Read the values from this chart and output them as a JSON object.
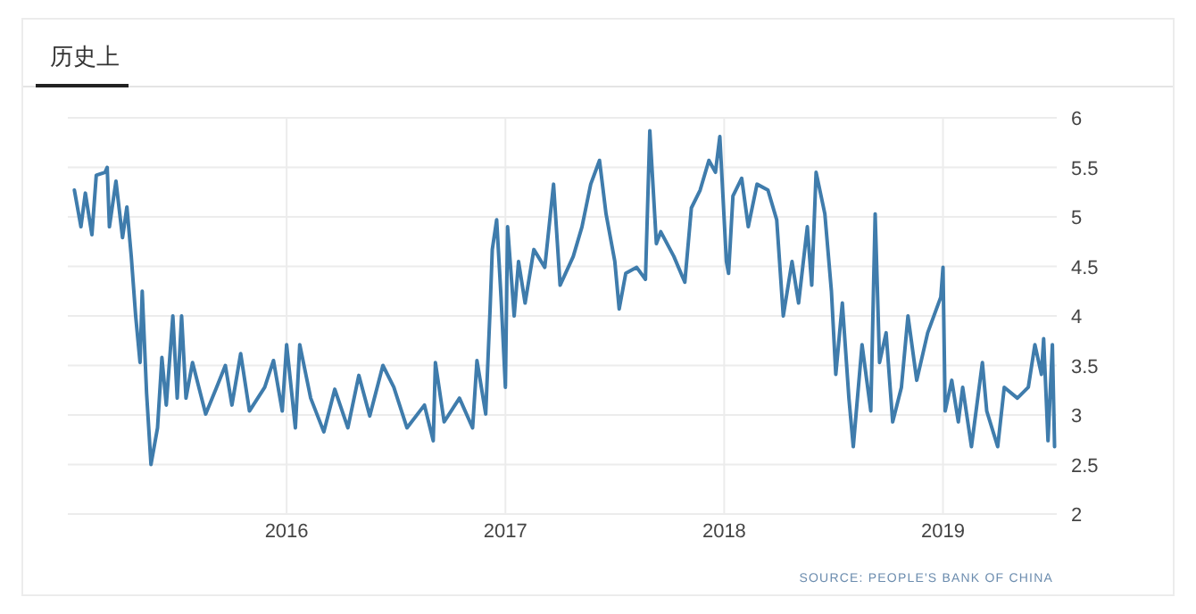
{
  "chart_data": {
    "type": "line",
    "title": "历史上",
    "annotations": [
      "SOURCE: PEOPLE'S BANK OF CHINA"
    ],
    "xlim": [
      2015.0,
      2019.52
    ],
    "xticks": [
      2016,
      2017,
      2018,
      2019
    ],
    "ylim": [
      2,
      6
    ],
    "yticks": [
      2,
      2.5,
      3,
      3.5,
      4,
      4.5,
      5,
      5.5,
      6
    ],
    "grid": true,
    "series": [
      {
        "color": "#3f7cac",
        "x": [
          2015.03,
          2015.06,
          2015.08,
          2015.11,
          2015.13,
          2015.17,
          2015.18,
          2015.19,
          2015.22,
          2015.25,
          2015.27,
          2015.29,
          2015.31,
          2015.33,
          2015.34,
          2015.36,
          2015.38,
          2015.41,
          2015.43,
          2015.45,
          2015.48,
          2015.5,
          2015.52,
          2015.54,
          2015.57,
          2015.63,
          2015.68,
          2015.72,
          2015.75,
          2015.79,
          2015.83,
          2015.9,
          2015.94,
          2015.98,
          2016.0,
          2016.04,
          2016.06,
          2016.11,
          2016.17,
          2016.22,
          2016.28,
          2016.33,
          2016.38,
          2016.44,
          2016.49,
          2016.55,
          2016.63,
          2016.67,
          2016.68,
          2016.72,
          2016.79,
          2016.85,
          2016.87,
          2016.91,
          2016.93,
          2016.94,
          2016.96,
          2016.98,
          2017.0,
          2017.01,
          2017.04,
          2017.06,
          2017.09,
          2017.13,
          2017.18,
          2017.22,
          2017.25,
          2017.31,
          2017.35,
          2017.39,
          2017.43,
          2017.46,
          2017.5,
          2017.52,
          2017.55,
          2017.6,
          2017.64,
          2017.66,
          2017.69,
          2017.71,
          2017.77,
          2017.82,
          2017.85,
          2017.89,
          2017.93,
          2017.96,
          2017.98,
          2018.01,
          2018.02,
          2018.04,
          2018.08,
          2018.11,
          2018.15,
          2018.2,
          2018.24,
          2018.27,
          2018.31,
          2018.34,
          2018.38,
          2018.4,
          2018.42,
          2018.46,
          2018.49,
          2018.51,
          2018.54,
          2018.57,
          2018.59,
          2018.63,
          2018.67,
          2018.69,
          2018.71,
          2018.74,
          2018.77,
          2018.81,
          2018.84,
          2018.88,
          2018.93,
          2018.99,
          2019.0,
          2019.01,
          2019.04,
          2019.07,
          2019.09,
          2019.13,
          2019.18,
          2019.2,
          2019.25,
          2019.28,
          2019.34,
          2019.39,
          2019.42,
          2019.45,
          2019.46,
          2019.48,
          2019.5,
          2019.51
        ],
        "values": [
          5.27,
          4.9,
          5.24,
          4.82,
          5.42,
          5.45,
          5.5,
          4.9,
          5.36,
          4.79,
          5.1,
          4.6,
          4.0,
          3.53,
          4.25,
          3.22,
          2.5,
          2.87,
          3.58,
          3.1,
          4.0,
          3.17,
          4.0,
          3.17,
          3.53,
          3.01,
          3.28,
          3.5,
          3.1,
          3.62,
          3.04,
          3.28,
          3.55,
          3.04,
          3.71,
          2.87,
          3.71,
          3.17,
          2.83,
          3.26,
          2.87,
          3.4,
          2.99,
          3.5,
          3.28,
          2.87,
          3.1,
          2.74,
          3.53,
          2.93,
          3.17,
          2.87,
          3.55,
          3.01,
          4.07,
          4.67,
          4.97,
          4.19,
          3.28,
          4.9,
          4.0,
          4.55,
          4.13,
          4.67,
          4.49,
          5.33,
          4.31,
          4.6,
          4.9,
          5.33,
          5.57,
          5.03,
          4.55,
          4.07,
          4.43,
          4.49,
          4.37,
          5.87,
          4.73,
          4.85,
          4.6,
          4.34,
          5.09,
          5.27,
          5.57,
          5.45,
          5.81,
          4.55,
          4.43,
          5.21,
          5.39,
          4.9,
          5.33,
          5.27,
          4.97,
          4.0,
          4.55,
          4.13,
          4.9,
          4.31,
          5.45,
          5.03,
          4.25,
          3.41,
          4.13,
          3.17,
          2.68,
          3.71,
          3.04,
          5.03,
          3.53,
          3.83,
          2.93,
          3.28,
          4.0,
          3.35,
          3.83,
          4.19,
          4.49,
          3.04,
          3.35,
          2.93,
          3.28,
          2.68,
          3.53,
          3.04,
          2.68,
          3.28,
          3.17,
          3.28,
          3.71,
          3.41,
          3.77,
          2.74,
          3.71,
          2.68
        ]
      }
    ]
  }
}
